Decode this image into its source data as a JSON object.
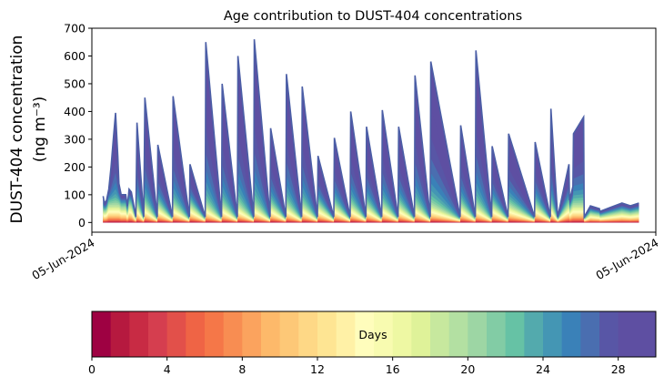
{
  "chart_data": [
    {
      "type": "area",
      "title": "Age contribution to DUST-404 concentrations",
      "ylabel_line1": "DUST-404 concentration",
      "ylabel_line2": "(ng m⁻³)",
      "xlabel": "",
      "ylim": [
        -35,
        700
      ],
      "yticks": [
        0,
        100,
        200,
        300,
        400,
        500,
        600,
        700
      ],
      "xticks": [
        "05-Jun-2024",
        "05-Jun-2024"
      ],
      "x_domain": [
        0,
        100
      ],
      "n_age_bins": 30,
      "series_top_total": {
        "description": "Total concentration (sum of all age bins), sampled along time axis 0-100",
        "x": [
          2.0,
          2.2,
          2.6,
          3.0,
          3.4,
          3.8,
          4.2,
          4.6,
          4.8,
          5.2,
          6.0,
          6.3,
          6.6,
          7.0,
          7.8,
          8.0,
          9.2,
          9.4,
          11.6,
          11.7,
          14.3,
          14.4,
          17.3,
          17.4,
          20.1,
          20.2,
          23.0,
          23.1,
          25.8,
          25.9,
          28.7,
          28.8,
          31.6,
          31.7,
          34.4,
          34.5,
          37.2,
          37.3,
          40.0,
          40.1,
          42.9,
          43.0,
          45.8,
          45.9,
          48.6,
          48.7,
          51.4,
          51.5,
          54.3,
          54.4,
          57.2,
          57.3,
          60.0,
          60.1,
          65.3,
          65.4,
          68.0,
          68.1,
          70.9,
          70.98,
          73.8,
          73.9,
          78.5,
          78.6,
          81.3,
          81.4,
          82.6,
          84.6,
          84.7,
          85.3,
          85.4,
          87.2,
          87.3,
          88.4,
          90.0,
          90.1,
          92.0,
          94.0,
          95.5,
          97.0
        ],
        "y": [
          95,
          70,
          80,
          120,
          200,
          300,
          395,
          240,
          140,
          100,
          100,
          60,
          120,
          110,
          20,
          360,
          20,
          450,
          20,
          280,
          20,
          455,
          20,
          210,
          20,
          650,
          20,
          500,
          20,
          600,
          20,
          660,
          20,
          340,
          20,
          535,
          20,
          490,
          20,
          240,
          20,
          305,
          20,
          400,
          20,
          345,
          20,
          405,
          20,
          345,
          20,
          530,
          20,
          580,
          20,
          350,
          20,
          620,
          20,
          275,
          20,
          320,
          20,
          290,
          20,
          410,
          20,
          210,
          80,
          130,
          320,
          380,
          20,
          60,
          50,
          40,
          55,
          70,
          60,
          70
        ]
      },
      "colorbar": {
        "label": "Days",
        "range": [
          0,
          30
        ],
        "ticks": [
          0,
          4,
          8,
          12,
          16,
          20,
          24,
          28
        ],
        "n_colors": 30,
        "colors": [
          "#9e0142",
          "#b6193f",
          "#c82b44",
          "#d53e4f",
          "#e2504a",
          "#ef6445",
          "#f57748",
          "#f88d52",
          "#fba35e",
          "#fdb96a",
          "#fdc877",
          "#fed886",
          "#fee593",
          "#fff1a6",
          "#fffdbc",
          "#f8fbb0",
          "#eef8a3",
          "#dff299",
          "#c7e89e",
          "#b3e0a2",
          "#9dd6a4",
          "#82cca5",
          "#66c2a5",
          "#53aaad",
          "#4496b4",
          "#3a81b8",
          "#4a6eb0",
          "#5856a6",
          "#5e4fa2",
          "#5e4fa2"
        ]
      }
    }
  ]
}
